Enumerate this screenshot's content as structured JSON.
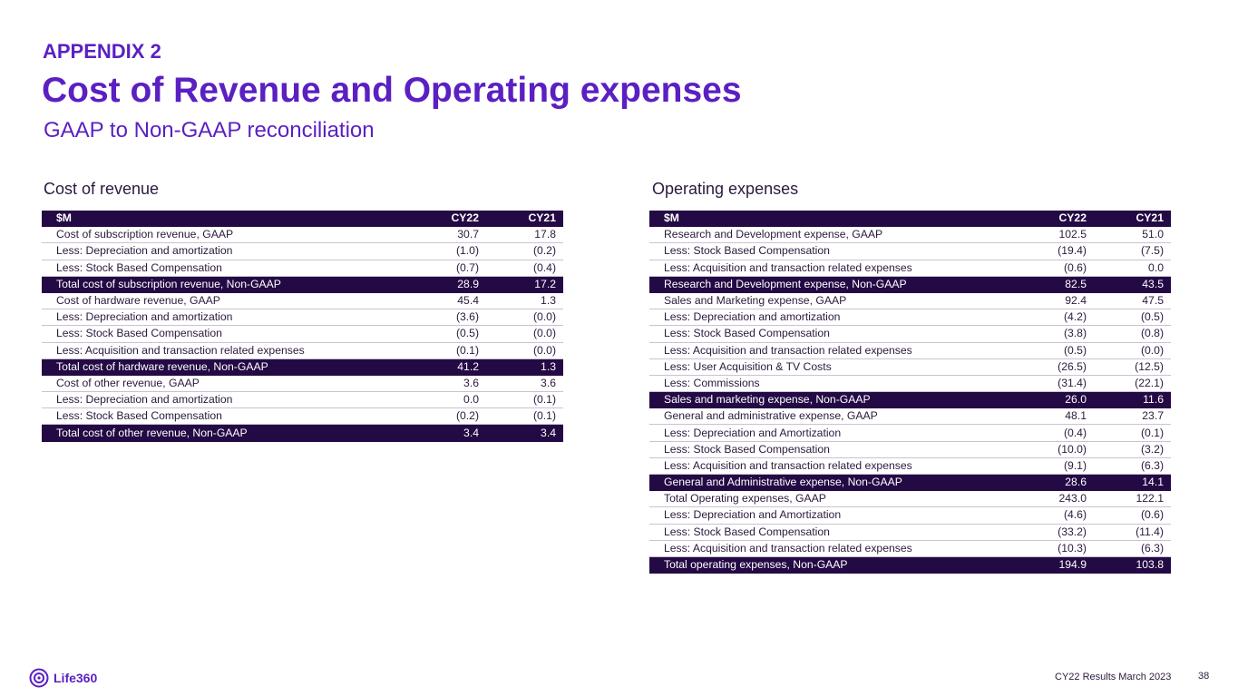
{
  "header": {
    "appendix": "APPENDIX 2",
    "title": "Cost of Revenue and Operating expenses",
    "subtitle": "GAAP to Non-GAAP reconciliation"
  },
  "cost_of_revenue": {
    "section_title": "Cost of revenue",
    "columns": [
      "$M",
      "CY22",
      "CY21"
    ],
    "rows": [
      {
        "label": "Cost of subscription revenue, GAAP",
        "cy22": "30.7",
        "cy21": "17.8",
        "total": false
      },
      {
        "label": "Less: Depreciation and amortization",
        "cy22": "(1.0)",
        "cy21": "(0.2)",
        "total": false
      },
      {
        "label": "Less: Stock Based Compensation",
        "cy22": "(0.7)",
        "cy21": "(0.4)",
        "total": false
      },
      {
        "label": "Total cost of subscription revenue, Non-GAAP",
        "cy22": "28.9",
        "cy21": "17.2",
        "total": true
      },
      {
        "label": "Cost of hardware revenue, GAAP",
        "cy22": "45.4",
        "cy21": "1.3",
        "total": false
      },
      {
        "label": "Less: Depreciation and amortization",
        "cy22": "(3.6)",
        "cy21": "(0.0)",
        "total": false
      },
      {
        "label": "Less: Stock Based Compensation",
        "cy22": "(0.5)",
        "cy21": "(0.0)",
        "total": false
      },
      {
        "label": "Less: Acquisition and transaction related expenses",
        "cy22": "(0.1)",
        "cy21": "(0.0)",
        "total": false
      },
      {
        "label": "Total cost of hardware revenue, Non-GAAP",
        "cy22": "41.2",
        "cy21": "1.3",
        "total": true
      },
      {
        "label": "Cost of other revenue, GAAP",
        "cy22": "3.6",
        "cy21": "3.6",
        "total": false
      },
      {
        "label": "Less: Depreciation and amortization",
        "cy22": "0.0",
        "cy21": "(0.1)",
        "total": false
      },
      {
        "label": "Less: Stock Based Compensation",
        "cy22": "(0.2)",
        "cy21": "(0.1)",
        "total": false
      },
      {
        "label": "Total cost of other revenue, Non-GAAP",
        "cy22": "3.4",
        "cy21": "3.4",
        "total": true
      }
    ]
  },
  "operating_expenses": {
    "section_title": "Operating expenses",
    "columns": [
      "$M",
      "CY22",
      "CY21"
    ],
    "rows": [
      {
        "label": "Research and Development expense, GAAP",
        "cy22": "102.5",
        "cy21": "51.0",
        "total": false
      },
      {
        "label": "Less: Stock Based Compensation",
        "cy22": "(19.4)",
        "cy21": "(7.5)",
        "total": false
      },
      {
        "label": "Less: Acquisition and transaction related expenses",
        "cy22": "(0.6)",
        "cy21": "0.0",
        "total": false
      },
      {
        "label": "Research and Development expense, Non-GAAP",
        "cy22": "82.5",
        "cy21": "43.5",
        "total": true
      },
      {
        "label": "Sales and Marketing expense, GAAP",
        "cy22": "92.4",
        "cy21": "47.5",
        "total": false
      },
      {
        "label": "Less: Depreciation and amortization",
        "cy22": "(4.2)",
        "cy21": "(0.5)",
        "total": false
      },
      {
        "label": "Less: Stock Based Compensation",
        "cy22": "(3.8)",
        "cy21": "(0.8)",
        "total": false
      },
      {
        "label": "Less: Acquisition and transaction related expenses",
        "cy22": "(0.5)",
        "cy21": "(0.0)",
        "total": false
      },
      {
        "label": "Less: User Acquisition & TV Costs",
        "cy22": "(26.5)",
        "cy21": "(12.5)",
        "total": false
      },
      {
        "label": "Less: Commissions",
        "cy22": "(31.4)",
        "cy21": "(22.1)",
        "total": false
      },
      {
        "label": "Sales and marketing expense, Non-GAAP",
        "cy22": "26.0",
        "cy21": "11.6",
        "total": true
      },
      {
        "label": "General and administrative expense, GAAP",
        "cy22": "48.1",
        "cy21": "23.7",
        "total": false
      },
      {
        "label": "Less: Depreciation and Amortization",
        "cy22": "(0.4)",
        "cy21": "(0.1)",
        "total": false
      },
      {
        "label": "Less: Stock Based Compensation",
        "cy22": "(10.0)",
        "cy21": "(3.2)",
        "total": false
      },
      {
        "label": "Less: Acquisition and transaction related expenses",
        "cy22": "(9.1)",
        "cy21": "(6.3)",
        "total": false
      },
      {
        "label": "General and Administrative expense, Non-GAAP",
        "cy22": "28.6",
        "cy21": "14.1",
        "total": true
      },
      {
        "label": "Total Operating expenses, GAAP",
        "cy22": "243.0",
        "cy21": "122.1",
        "total": false
      },
      {
        "label": "Less: Depreciation and Amortization",
        "cy22": "(4.6)",
        "cy21": "(0.6)",
        "total": false
      },
      {
        "label": "Less: Stock Based Compensation",
        "cy22": "(33.2)",
        "cy21": "(11.4)",
        "total": false
      },
      {
        "label": "Less: Acquisition and transaction related expenses",
        "cy22": "(10.3)",
        "cy21": "(6.3)",
        "total": false
      },
      {
        "label": "Total operating expenses, Non-GAAP",
        "cy22": "194.9",
        "cy21": "103.8",
        "total": true
      }
    ]
  },
  "footer": {
    "logo_text": "Life360",
    "logo_icon": "life360-logo-icon",
    "report": "CY22 Results March 2023",
    "page_number": "38"
  },
  "colors": {
    "accent": "#5b1fc2",
    "table_header": "#240a45"
  }
}
